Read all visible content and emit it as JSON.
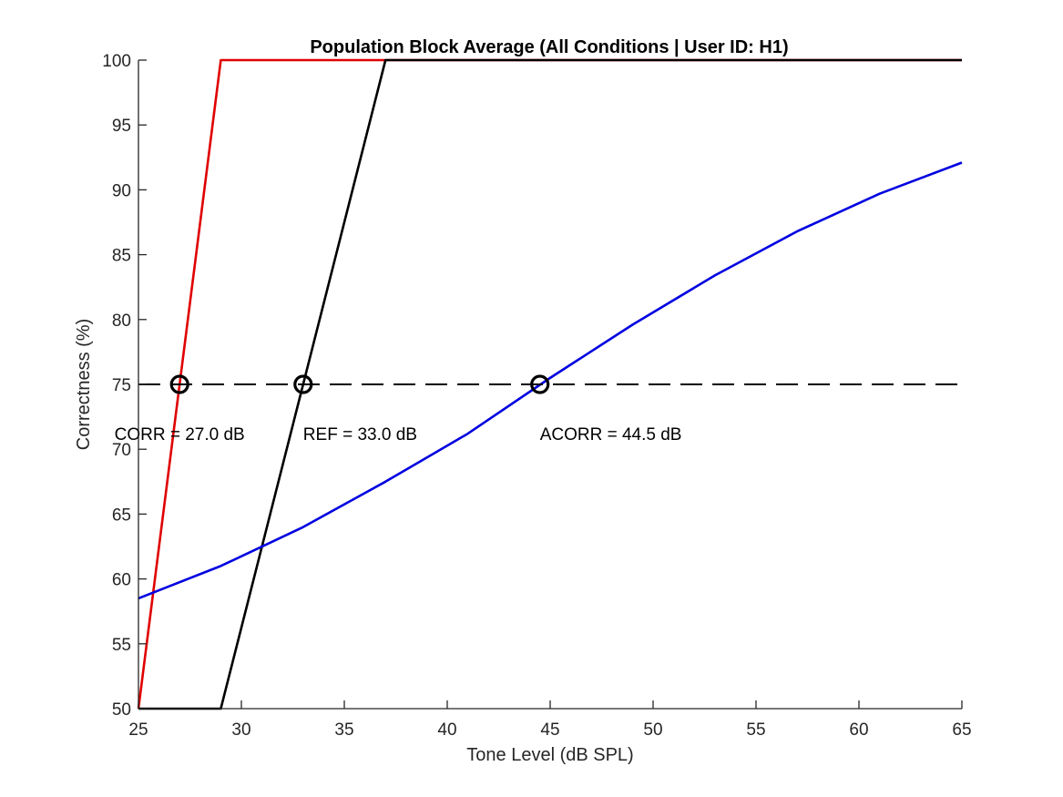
{
  "colors": {
    "corr": "#e00000",
    "ref": "#000000",
    "acorr": "#0000e0",
    "threshold": "#000000",
    "axis": "#262626"
  },
  "chart_data": {
    "type": "line",
    "title": "Population Block Average (All Conditions | User ID: H1)",
    "xlabel": "Tone Level (dB SPL)",
    "ylabel": "Correctness (%)",
    "xlim": [
      25,
      65
    ],
    "ylim": [
      50,
      100
    ],
    "xticks": [
      25,
      30,
      35,
      40,
      45,
      50,
      55,
      60,
      65
    ],
    "yticks": [
      50,
      55,
      60,
      65,
      70,
      75,
      80,
      85,
      90,
      95,
      100
    ],
    "grid": false,
    "legend": "none",
    "series": [
      {
        "color_key": "corr",
        "style": "solid",
        "x": [
          25,
          29,
          65
        ],
        "y": [
          50,
          100,
          100
        ]
      },
      {
        "color_key": "ref",
        "style": "solid",
        "x": [
          25,
          29,
          37,
          65
        ],
        "y": [
          50,
          50,
          100,
          100
        ]
      },
      {
        "color_key": "acorr",
        "style": "solid",
        "x": [
          25,
          29,
          33,
          37,
          41,
          45,
          49,
          53,
          57,
          61,
          65
        ],
        "y": [
          58.5,
          61.0,
          64.0,
          67.5,
          71.2,
          75.5,
          79.6,
          83.4,
          86.8,
          89.7,
          92.1
        ]
      },
      {
        "color_key": "threshold",
        "style": "dashed",
        "x": [
          25,
          65
        ],
        "y": [
          75,
          75
        ]
      }
    ],
    "markers": [
      {
        "x": 27.0,
        "y": 75
      },
      {
        "x": 33.0,
        "y": 75
      },
      {
        "x": 44.5,
        "y": 75
      }
    ],
    "annotations": [
      {
        "text": "CORR = 27.0 dB",
        "x": 27.0,
        "y": 71.2,
        "anchor": "middle"
      },
      {
        "text": "REF = 33.0 dB",
        "x": 33.0,
        "y": 71.2,
        "anchor": "start"
      },
      {
        "text": "ACORR = 44.5 dB",
        "x": 44.5,
        "y": 71.2,
        "anchor": "start"
      }
    ]
  }
}
